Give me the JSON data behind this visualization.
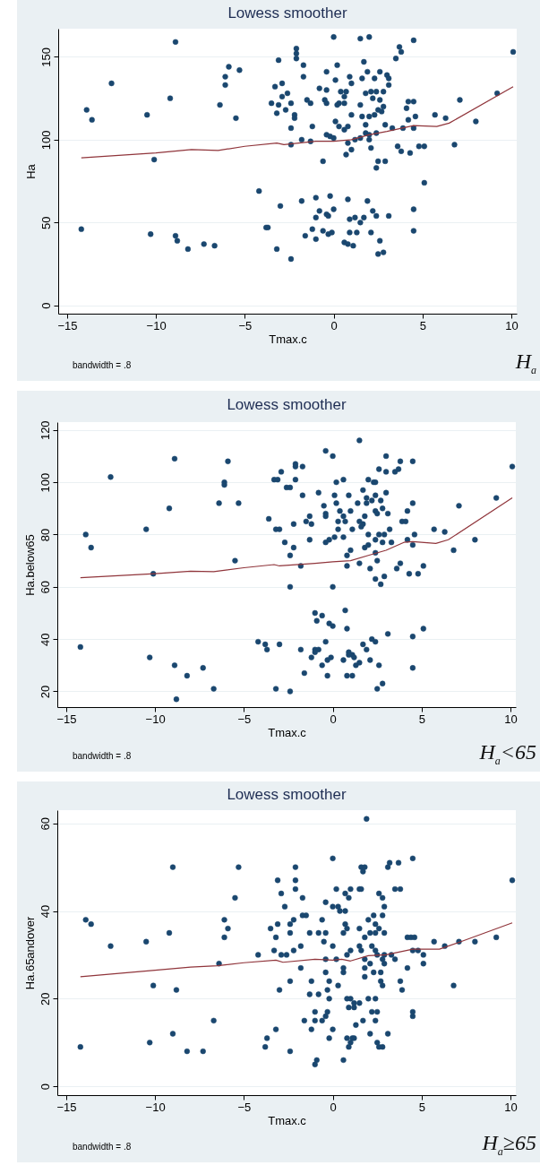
{
  "chart_data": [
    {
      "type": "scatter",
      "title": "Lowess smoother",
      "xlabel": "Tmax.c",
      "ylabel": "Ha",
      "xlim": [
        -15.5,
        10.3
      ],
      "xticks": [
        -15,
        -10,
        -5,
        0,
        5,
        10
      ],
      "ylim": [
        -5,
        167
      ],
      "yticks": [
        0,
        50,
        100,
        150
      ],
      "grid": "y",
      "marker": "circle",
      "annotations": [
        "bandwidth = .8",
        "H$_{a}$"
      ],
      "series": [
        {
          "type": "scatter",
          "color": "#1a476f",
          "x": [
            0,
            1.5,
            2,
            4.5,
            -8.9,
            10.1,
            -2.1,
            -2.1,
            -2.1,
            -3.1,
            3.7,
            3.8,
            3.5,
            -1.7,
            0.2,
            1.7,
            -5.9,
            -5.3,
            -0.4,
            1.9,
            2.6,
            3,
            3.1,
            3.1,
            -6.1,
            -6.1,
            -12.5,
            -1.7,
            0.9,
            1.6,
            2.3,
            0.1,
            1,
            -2.9,
            -3.3,
            -0.8,
            -0.4,
            0.4,
            0.7,
            1.8,
            2.1,
            2.4,
            2.8,
            -2.6,
            -2.9,
            -9.2,
            2.6,
            0.6,
            2.2,
            -0.5,
            -1.5,
            -1.3,
            -2.4,
            -3.5,
            -0.4,
            0.3,
            0.6,
            0.2,
            4.2,
            4.5,
            7.1,
            9.2,
            -13.9,
            -13.6,
            -10.5,
            -6.4,
            -3.1,
            -3.2,
            -2.7,
            -2.2,
            -2.2,
            -5.5,
            1.5,
            2.8,
            2.5,
            2.7,
            1,
            1.6,
            2,
            2.3,
            4.1,
            4.2,
            4.6,
            5.7,
            6.3,
            8,
            0.1,
            0.3,
            0.8,
            0.6,
            -1.2,
            -2.4,
            1.8,
            2.9,
            3.3,
            3.9,
            4.5,
            1.8,
            2,
            2.4,
            -0.4,
            -0.2,
            0,
            1.2,
            1.5,
            2,
            -1.8,
            -1.3,
            -2.4,
            0.8,
            1,
            0.7,
            2.1,
            3.6,
            3.8,
            4.3,
            4.8,
            5.1,
            6.8,
            -0.6,
            2.5,
            2.9,
            2.4,
            -10.1,
            5.1,
            -4.2,
            -3,
            -1.8,
            -1,
            -0.2,
            0.8,
            1.9,
            0,
            -0.8,
            -1,
            -0.4,
            -0.3,
            0.9,
            1.2,
            1.5,
            1.7,
            2.2,
            2.4,
            3.1,
            4.5,
            4.5,
            -3.8,
            -3.7,
            -1.2,
            -0.6,
            -0.3,
            -0.1,
            0.9,
            1.3,
            2.1,
            -1.6,
            -1,
            0.6,
            0.8,
            1.1,
            2.6,
            -14.2,
            -10.3,
            -8.9,
            -8.8,
            -8.2,
            -7.3,
            -6.7,
            -3.2,
            -2.4,
            2.5,
            2.8
          ],
          "values": [
            162,
            161,
            162,
            160,
            159,
            153,
            155,
            152,
            149,
            148,
            156,
            153,
            149,
            145,
            145,
            147,
            144,
            142,
            141,
            141,
            141,
            139,
            137,
            133,
            138,
            133,
            134,
            138,
            138,
            137,
            137,
            136,
            134,
            134,
            132,
            131,
            130,
            129,
            129,
            128,
            129,
            129,
            129,
            128,
            126,
            125,
            124,
            126,
            125,
            124,
            124,
            122,
            122,
            122,
            122,
            122,
            122,
            121,
            123,
            123,
            124,
            128,
            118,
            112,
            115,
            121,
            121,
            116,
            118,
            115,
            113,
            113,
            121,
            120,
            118,
            117,
            115,
            114,
            114,
            115,
            119,
            112,
            114,
            115,
            113,
            111,
            111,
            108,
            108,
            106,
            108,
            107,
            109,
            109,
            107,
            107,
            107,
            104,
            103,
            104,
            103,
            102,
            101,
            100,
            101,
            100,
            100,
            99,
            97,
            98,
            94,
            91,
            95,
            96,
            93,
            92,
            96,
            96,
            97,
            87,
            87,
            87,
            83,
            88,
            74,
            69,
            60,
            63,
            65,
            66,
            64,
            63,
            58,
            57,
            53,
            55,
            54,
            52,
            53,
            50,
            53,
            57,
            54,
            54,
            58,
            45,
            47,
            47,
            46,
            45,
            43,
            44,
            44,
            44,
            44,
            42,
            40,
            38,
            37,
            36,
            39,
            46,
            43,
            42,
            39,
            34,
            37,
            36,
            34,
            28,
            31,
            32
          ]
        },
        {
          "type": "line",
          "color": "#90353b",
          "marker": "none",
          "x": [
            -14.2,
            -10,
            -8,
            -6.5,
            -5,
            -3.2,
            -2.8,
            -1,
            0,
            1,
            2,
            3,
            4.5,
            5.8,
            6.5,
            10.1
          ],
          "values": [
            89,
            92,
            94,
            93.5,
            96,
            98,
            97,
            99,
            99,
            100,
            103,
            105,
            108.5,
            108,
            110,
            132
          ]
        }
      ]
    },
    {
      "type": "scatter",
      "title": "Lowess smoother",
      "xlabel": "Tmax.c",
      "ylabel": "Ha.below65",
      "xlim": [
        -15.5,
        10.3
      ],
      "xticks": [
        -15,
        -10,
        -5,
        0,
        5,
        10
      ],
      "ylim": [
        14,
        123
      ],
      "yticks": [
        20,
        40,
        60,
        80,
        100,
        120
      ],
      "grid": "y",
      "marker": "circle",
      "annotations": [
        "bandwidth = .8",
        "H$_{a}$<65"
      ],
      "series": [
        {
          "type": "scatter",
          "color": "#1a476f",
          "x": [
            1.5,
            -8.9,
            -0.4,
            0,
            3,
            -5.9,
            3.8,
            4.5,
            -2.1,
            -2.1,
            -1.7,
            -2.9,
            2.6,
            3,
            3.5,
            3.7,
            10.1,
            -12.5,
            -6.1,
            -6.1,
            -3.3,
            -3.1,
            -2.1,
            -2.6,
            -2.4,
            0.2,
            0.6,
            2,
            2.3,
            2.4,
            -0.8,
            0.1,
            0.9,
            1.7,
            3,
            -1.7,
            -6.4,
            -5.3,
            -9.2,
            4.5,
            9.2,
            7.1,
            -0.5,
            0.2,
            1.4,
            1.9,
            1.9,
            2.2,
            2.4,
            2.7,
            2.8,
            4.2,
            -0.4,
            -0.4,
            0.4,
            1,
            0.6,
            1.8,
            2.4,
            2.5,
            3.1,
            -1.3,
            -3.6,
            3.9,
            4.1,
            0.3,
            0.7,
            1.5,
            1.7,
            -1.5,
            -1.2,
            -2.2,
            -3.2,
            -3,
            -13.9,
            -10.5,
            1.1,
            1.6,
            0.3,
            5.7,
            6.3,
            3.2,
            2,
            2.6,
            2.9,
            4.6,
            0.6,
            0.1,
            -0.2,
            -0.4,
            -1.3,
            -2.7,
            1.8,
            2,
            2.4,
            2.8,
            3.3,
            4.2,
            4.5,
            8,
            6.8,
            -13.6,
            -2.2,
            1,
            0.8,
            -2.4,
            -5.5,
            2.4,
            2.5,
            1.5,
            3.8,
            -1.8,
            0.8,
            3.6,
            2.1,
            5.1,
            -10.1,
            4.3,
            4.8,
            2.4,
            2.9,
            2.7,
            -2.4,
            0,
            0.7,
            -1,
            -0.6,
            -0.9,
            -0.2,
            0,
            0.8,
            5.1,
            3.1,
            4.5,
            2.2,
            2.4,
            -4.2,
            -3.8,
            -3,
            -3.7,
            -0.4,
            1.7,
            1.9,
            -1.8,
            -1,
            -0.8,
            -1,
            0.9,
            1.1,
            1.2,
            0.9,
            -1.2,
            -0.1,
            -0.3,
            0.6,
            2.1,
            1.5,
            1.3,
            -0.6,
            2.6,
            4.5,
            -14.2,
            -10.3,
            -8.9,
            -7.3,
            -8.2,
            -1.6,
            -0.3,
            0.8,
            1.1,
            -6.7,
            -3.2,
            -2.4,
            2.5,
            2.8,
            -8.8
          ],
          "values": [
            116,
            109,
            112,
            110,
            110,
            108,
            108,
            108,
            107,
            106,
            106,
            104,
            105,
            104,
            104,
            105,
            106,
            102,
            100,
            99,
            101,
            101,
            101,
            98,
            98,
            100,
            101,
            101,
            100,
            100,
            96,
            95,
            95,
            97,
            96,
            95,
            92,
            92,
            90,
            92,
            94,
            91,
            91,
            92,
            92,
            92,
            94,
            93,
            95,
            93,
            90,
            89,
            88,
            87,
            89,
            89,
            87,
            87,
            89,
            88,
            88,
            87,
            86,
            85,
            85,
            85,
            85,
            85,
            84,
            85,
            84,
            84,
            82,
            82,
            80,
            82,
            82,
            83,
            82,
            82,
            81,
            82,
            80,
            80,
            80,
            80,
            79,
            79,
            78,
            77,
            78,
            77,
            75,
            76,
            78,
            77,
            77,
            78,
            76,
            78,
            74,
            75,
            75,
            74,
            72,
            72,
            70,
            73,
            70,
            69,
            69,
            68,
            68,
            67,
            67,
            68,
            65,
            65,
            65,
            63,
            64,
            61,
            60,
            60,
            51,
            50,
            49,
            47,
            46,
            45,
            44,
            44,
            42,
            41,
            40,
            39,
            39,
            38,
            38,
            36,
            39,
            38,
            36,
            36,
            36,
            36,
            35,
            35,
            34,
            33,
            34,
            33,
            33,
            32,
            32,
            32,
            31,
            30,
            30,
            30,
            29,
            37,
            33,
            30,
            29,
            26,
            27,
            26,
            26,
            26,
            21,
            21,
            20,
            21,
            23,
            17
          ]
        },
        {
          "type": "line",
          "color": "#90353b",
          "marker": "none",
          "x": [
            -14.2,
            -10,
            -8,
            -6.7,
            -5,
            -3.3,
            -3,
            -1,
            0,
            1,
            2,
            3,
            4,
            4.5,
            5.8,
            6.5,
            10.1
          ],
          "values": [
            63.5,
            65,
            66,
            65.8,
            67.3,
            68.5,
            68,
            69,
            69.6,
            70,
            72,
            74,
            77,
            77.3,
            76.6,
            78,
            94
          ]
        }
      ]
    },
    {
      "type": "scatter",
      "title": "Lowess smoother",
      "xlabel": "Tmax.c",
      "ylabel": "Ha.65andover",
      "xlim": [
        -15.5,
        10.3
      ],
      "xticks": [
        -15,
        -10,
        -5,
        0,
        5,
        10
      ],
      "ylim": [
        -2,
        63
      ],
      "yticks": [
        0,
        20,
        40,
        60
      ],
      "grid": "y",
      "marker": "circle",
      "annotations": [
        "bandwidth = .8",
        "H$_{a}$≥65"
      ],
      "series": [
        {
          "type": "scatter",
          "color": "#1a476f",
          "x": [
            1.9,
            0,
            4.5,
            -9,
            -5.3,
            -2.1,
            1.6,
            1.8,
            1.7,
            3.1,
            3.2,
            3.7,
            10.1,
            -3.1,
            -2.1,
            -2.9,
            -2.1,
            0.2,
            1,
            1.5,
            1.6,
            3.5,
            3.8,
            2.6,
            2.8,
            0.7,
            0.9,
            -5.5,
            -1.7,
            -2.7,
            -0.4,
            0,
            0.3,
            0.4,
            0.7,
            2.9,
            -1.7,
            -1.5,
            2.3,
            2.8,
            -13.9,
            -6.1,
            -2.2,
            -0.6,
            2,
            -13.6,
            -5.9,
            -3.1,
            -2.4,
            -3.5,
            0.7,
            0.8,
            1.5,
            2.4,
            2.6,
            -12.5,
            -9.2,
            -10.5,
            -6.1,
            -3.2,
            -2.4,
            -1.3,
            -0.8,
            -0.4,
            0.6,
            1.8,
            2.1,
            2.4,
            2.9,
            4.2,
            4.4,
            4.6,
            9.2,
            -0.5,
            5.7,
            7.1,
            8,
            -1.8,
            0,
            1.5,
            2.2,
            6.3,
            -3.3,
            -2.2,
            1,
            1.6,
            2.4,
            4.5,
            4.8,
            -4.2,
            -2.9,
            -2.6,
            0.8,
            2.5,
            2.9,
            3.3,
            5.1,
            -0.4,
            0.2,
            1.8,
            2.8,
            3.5,
            -6.4,
            2.1,
            2.9,
            5.1,
            -1.8,
            0.6,
            1.8,
            4.2,
            -0.4,
            0.6,
            2.3,
            2.7,
            1.8,
            -2.4,
            -1.2,
            -0.2,
            2.7,
            3.8,
            -10.1,
            0.3,
            2.8,
            6.8,
            -8.8,
            -3,
            -0.3,
            3.9,
            -1.3,
            -0.8,
            -0.2,
            0.8,
            1,
            2,
            2.4,
            1.2,
            1.5,
            0.9,
            1.2,
            -1,
            -0.3,
            2.2,
            2.5,
            4.5,
            4.5,
            -0.4,
            -1.6,
            -1,
            -0.6,
            1.7,
            2.4,
            -6.7,
            1.3,
            -3.2,
            -1.2,
            0,
            -9,
            2.1,
            3.1,
            -3.7,
            -0.2,
            0.8,
            1.1,
            1.2,
            1,
            2.5,
            -10.3,
            -14.2,
            -3.8,
            0.9,
            2.6,
            2.8,
            -8.2,
            -7.3,
            -2.4,
            -0.9,
            0.6,
            -1
          ],
          "values": [
            61,
            52,
            52,
            50,
            50,
            50,
            50,
            50,
            49,
            50,
            51,
            51,
            47,
            47,
            47,
            44,
            45,
            45,
            45,
            45,
            45,
            45,
            45,
            44,
            43,
            44,
            43,
            43,
            43,
            41,
            42,
            41,
            41,
            40,
            40,
            41,
            39,
            39,
            39,
            39,
            38,
            38,
            38,
            38,
            38,
            37,
            36,
            37,
            37,
            36,
            37,
            36,
            36,
            37,
            36,
            32,
            35,
            33,
            34,
            34,
            35,
            35,
            35,
            35,
            35,
            34,
            35,
            35,
            35,
            34,
            34,
            34,
            34,
            33,
            33,
            33,
            33,
            32,
            32,
            32,
            32,
            32,
            31,
            31,
            31,
            31,
            31,
            31,
            31,
            30,
            30,
            30,
            30,
            30,
            30,
            30,
            30,
            29,
            29,
            29,
            29,
            29,
            28,
            28,
            28,
            28,
            27,
            27,
            27,
            27,
            26,
            26,
            26,
            26,
            25,
            24,
            24,
            24,
            24,
            24,
            23,
            23,
            23,
            23,
            22,
            22,
            22,
            22,
            21,
            21,
            20,
            20,
            20,
            20,
            20,
            19,
            19,
            18,
            18,
            17,
            17,
            17,
            17,
            17,
            16,
            16,
            15,
            15,
            15,
            15,
            15,
            15,
            14,
            13,
            13,
            13,
            12,
            12,
            12,
            11,
            11,
            11,
            11,
            11,
            10,
            10,
            10,
            9,
            9,
            9,
            9,
            9,
            8,
            8,
            8,
            6,
            6,
            5
          ]
        },
        {
          "type": "line",
          "color": "#90353b",
          "marker": "none",
          "x": [
            -14.2,
            -10,
            -8,
            -6.5,
            -5,
            -3.2,
            -2.8,
            -1,
            0,
            0.5,
            1,
            2,
            3,
            4.5,
            6,
            7,
            10.1
          ],
          "values": [
            25,
            26.5,
            27.2,
            27.5,
            28.2,
            28.8,
            28.3,
            29,
            28.8,
            29,
            28.6,
            29.8,
            30,
            31.3,
            31.3,
            32.7,
            37.3
          ]
        }
      ]
    }
  ]
}
